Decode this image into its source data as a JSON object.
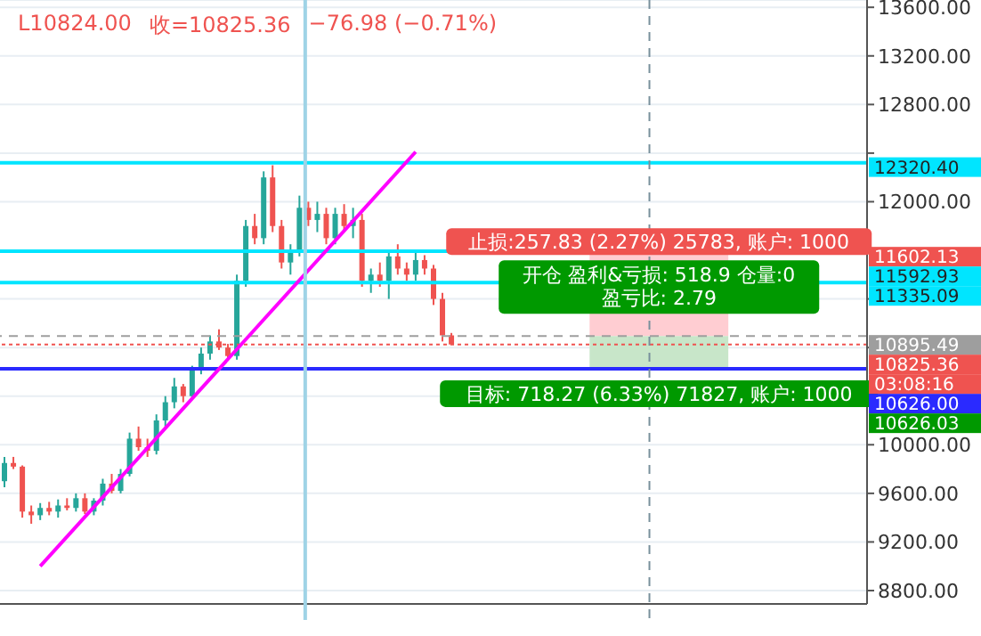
{
  "chart_data": {
    "type": "candlestick",
    "categories": [
      null,
      null,
      null,
      null,
      null,
      null,
      null,
      null,
      null,
      null,
      null,
      null,
      null,
      null,
      null,
      null,
      null,
      null,
      null,
      null,
      null,
      null,
      null,
      null,
      null,
      null,
      null,
      null,
      null,
      null,
      null,
      null,
      null,
      null,
      null,
      null,
      null,
      null,
      null,
      null,
      null,
      null,
      null,
      null,
      null,
      null,
      null,
      null,
      null,
      null,
      null,
      null,
      null,
      null,
      null,
      null,
      null,
      null,
      null,
      null,
      null,
      null,
      null,
      null,
      null,
      null,
      null,
      null,
      null,
      null,
      null,
      null,
      null,
      null,
      null,
      null,
      null,
      null,
      null,
      null,
      null,
      null,
      null,
      null,
      null,
      null,
      null,
      null,
      null,
      null,
      null,
      null,
      null,
      null,
      null,
      null,
      null
    ],
    "ylim": [
      8690,
      13660
    ],
    "yticks": [
      {
        "value": 8800,
        "label": "8800.00"
      },
      {
        "value": 9200,
        "label": "9200.00"
      },
      {
        "value": 9600,
        "label": "9600.00"
      },
      {
        "value": 10000,
        "label": "10000.00"
      },
      {
        "value": 10400,
        "label": null
      },
      {
        "value": 10800,
        "label": null
      },
      {
        "value": 11200,
        "label": null
      },
      {
        "value": 11600,
        "label": null
      },
      {
        "value": 12000,
        "label": "12000.00"
      },
      {
        "value": 12400,
        "label": null
      },
      {
        "value": 12800,
        "label": "12800.00"
      },
      {
        "value": 13200,
        "label": "13200.00"
      },
      {
        "value": 13600,
        "label": "13600.00"
      }
    ],
    "tick_labels": "y",
    "grid": true,
    "series": [
      {
        "ohlc": [
          [
            9700,
            9900,
            9650,
            9850
          ],
          [
            9850,
            9900,
            9800,
            9820
          ],
          [
            9820,
            9830,
            9400,
            9450
          ],
          [
            9450,
            9500,
            9350,
            9420
          ],
          [
            9420,
            9520,
            9380,
            9480
          ],
          [
            9480,
            9530,
            9420,
            9450
          ],
          [
            9450,
            9550,
            9400,
            9500
          ],
          [
            9500,
            9560,
            9460,
            9480
          ],
          [
            9480,
            9600,
            9450,
            9560
          ],
          [
            9560,
            9600,
            9430,
            9450
          ],
          [
            9450,
            9560,
            9420,
            9540
          ],
          [
            9540,
            9720,
            9500,
            9680
          ],
          [
            9680,
            9760,
            9600,
            9620
          ],
          [
            9620,
            9800,
            9600,
            9760
          ],
          [
            9760,
            10100,
            9740,
            10050
          ],
          [
            10050,
            10150,
            9950,
            9980
          ],
          [
            9980,
            10050,
            9900,
            9950
          ],
          [
            9950,
            10250,
            9920,
            10200
          ],
          [
            10200,
            10400,
            10150,
            10350
          ],
          [
            10350,
            10550,
            10300,
            10480
          ],
          [
            10480,
            10500,
            10350,
            10400
          ],
          [
            10400,
            10650,
            10380,
            10620
          ],
          [
            10620,
            10800,
            10580,
            10750
          ],
          [
            10750,
            10900,
            10700,
            10850
          ],
          [
            10850,
            10950,
            10780,
            10800
          ],
          [
            10800,
            10830,
            10700,
            10730
          ],
          [
            10730,
            11400,
            10700,
            11350
          ],
          [
            11350,
            11850,
            11300,
            11800
          ],
          [
            11800,
            11900,
            11650,
            11700
          ],
          [
            11700,
            12250,
            11650,
            12200
          ],
          [
            12200,
            12300,
            11750,
            11800
          ],
          [
            11800,
            11850,
            11450,
            11500
          ],
          [
            11500,
            11650,
            11400,
            11600
          ],
          [
            11600,
            12050,
            11550,
            11950
          ],
          [
            11950,
            12000,
            11800,
            11850
          ],
          [
            11850,
            12000,
            11750,
            11900
          ],
          [
            11900,
            11950,
            11650,
            11700
          ],
          [
            11700,
            11950,
            11650,
            11900
          ],
          [
            11900,
            11980,
            11750,
            11800
          ],
          [
            11800,
            11950,
            11700,
            11850
          ],
          [
            11850,
            11900,
            11300,
            11350
          ],
          [
            11350,
            11450,
            11250,
            11400
          ],
          [
            11400,
            11500,
            11300,
            11350
          ],
          [
            11350,
            11600,
            11200,
            11550
          ],
          [
            11550,
            11650,
            11400,
            11450
          ],
          [
            11450,
            11500,
            11350,
            11400
          ],
          [
            11400,
            11580,
            11350,
            11520
          ],
          [
            11520,
            11560,
            11400,
            11450
          ],
          [
            11450,
            11480,
            11150,
            11200
          ],
          [
            11200,
            11250,
            10850,
            10900
          ],
          [
            10900,
            10920,
            10824,
            10825.36
          ],
          null,
          null,
          null,
          null,
          null,
          null,
          null,
          null,
          null,
          null,
          null,
          null,
          null,
          null,
          null,
          null,
          null,
          null,
          null,
          null,
          null,
          null,
          null,
          null,
          null,
          null,
          null,
          null,
          null,
          null,
          null,
          null,
          null,
          null,
          null,
          null,
          null,
          null,
          null,
          null,
          null,
          null,
          null,
          null,
          null,
          null
        ]
      },
      {
        "type": "line",
        "color": "#ff00ff",
        "values": [
          null,
          null,
          null,
          null,
          9000,
          null,
          null,
          null,
          null,
          null,
          null,
          null,
          null,
          null,
          null,
          null,
          null,
          null,
          null,
          null,
          null,
          null,
          null,
          null,
          null,
          null,
          null,
          null,
          null,
          null,
          null,
          null,
          null,
          null,
          null,
          null,
          null,
          null,
          null,
          null,
          null,
          null,
          null,
          null,
          null,
          null,
          12410,
          null,
          null,
          null,
          null,
          null,
          null,
          null,
          null,
          null,
          null,
          null,
          null,
          null,
          null,
          null,
          null,
          null,
          null,
          null,
          null,
          null,
          null,
          null,
          null,
          null,
          null,
          null,
          null,
          null,
          null,
          null,
          null,
          null,
          null,
          null,
          null,
          null,
          null,
          null,
          null,
          null,
          null,
          null,
          null,
          null,
          null,
          null,
          null,
          null,
          null
        ]
      }
    ],
    "ref_lines": [
      {
        "axis": "y",
        "value": 12320.4,
        "label": "12320.40",
        "color": "#00e5ff"
      },
      {
        "axis": "y",
        "value": 11592.93,
        "label": "11592.93",
        "color": "#00e5ff"
      },
      {
        "axis": "y",
        "value": 11335.09,
        "label": "11335.09",
        "color": "#00e5ff"
      },
      {
        "axis": "y",
        "value": 10895.49,
        "label": "10895.49",
        "color": "#9e9e9e",
        "line_style": "dashed"
      },
      {
        "axis": "y",
        "value": 10825.36,
        "label": "10825.36",
        "color": "#ef5350",
        "line_style": "dotted"
      },
      {
        "axis": "y",
        "value": 10626.0,
        "label": "10626.00",
        "color": "#2a2aff"
      }
    ],
    "bands": [
      {
        "axis": "y",
        "from": 10895.49,
        "to": 11602.13,
        "label": "止损:257.83 (2.27%) 25783, 账户: 1000",
        "color": "#ffcdd2"
      },
      {
        "axis": "y",
        "from": 10626.03,
        "to": 10895.49,
        "label": "目标: 718.27 (6.33%) 71827, 账户: 1000",
        "color": "#c8e6c9"
      }
    ],
    "annotations": [
      "L10824.00",
      "收=10825.36",
      "−76.98 (−0.71%)",
      "开仓 盈利&亏损: 518.9 仓量:0",
      "盈亏比: 2.79",
      "03:08:16",
      "11602.13",
      "10626.03"
    ]
  }
}
